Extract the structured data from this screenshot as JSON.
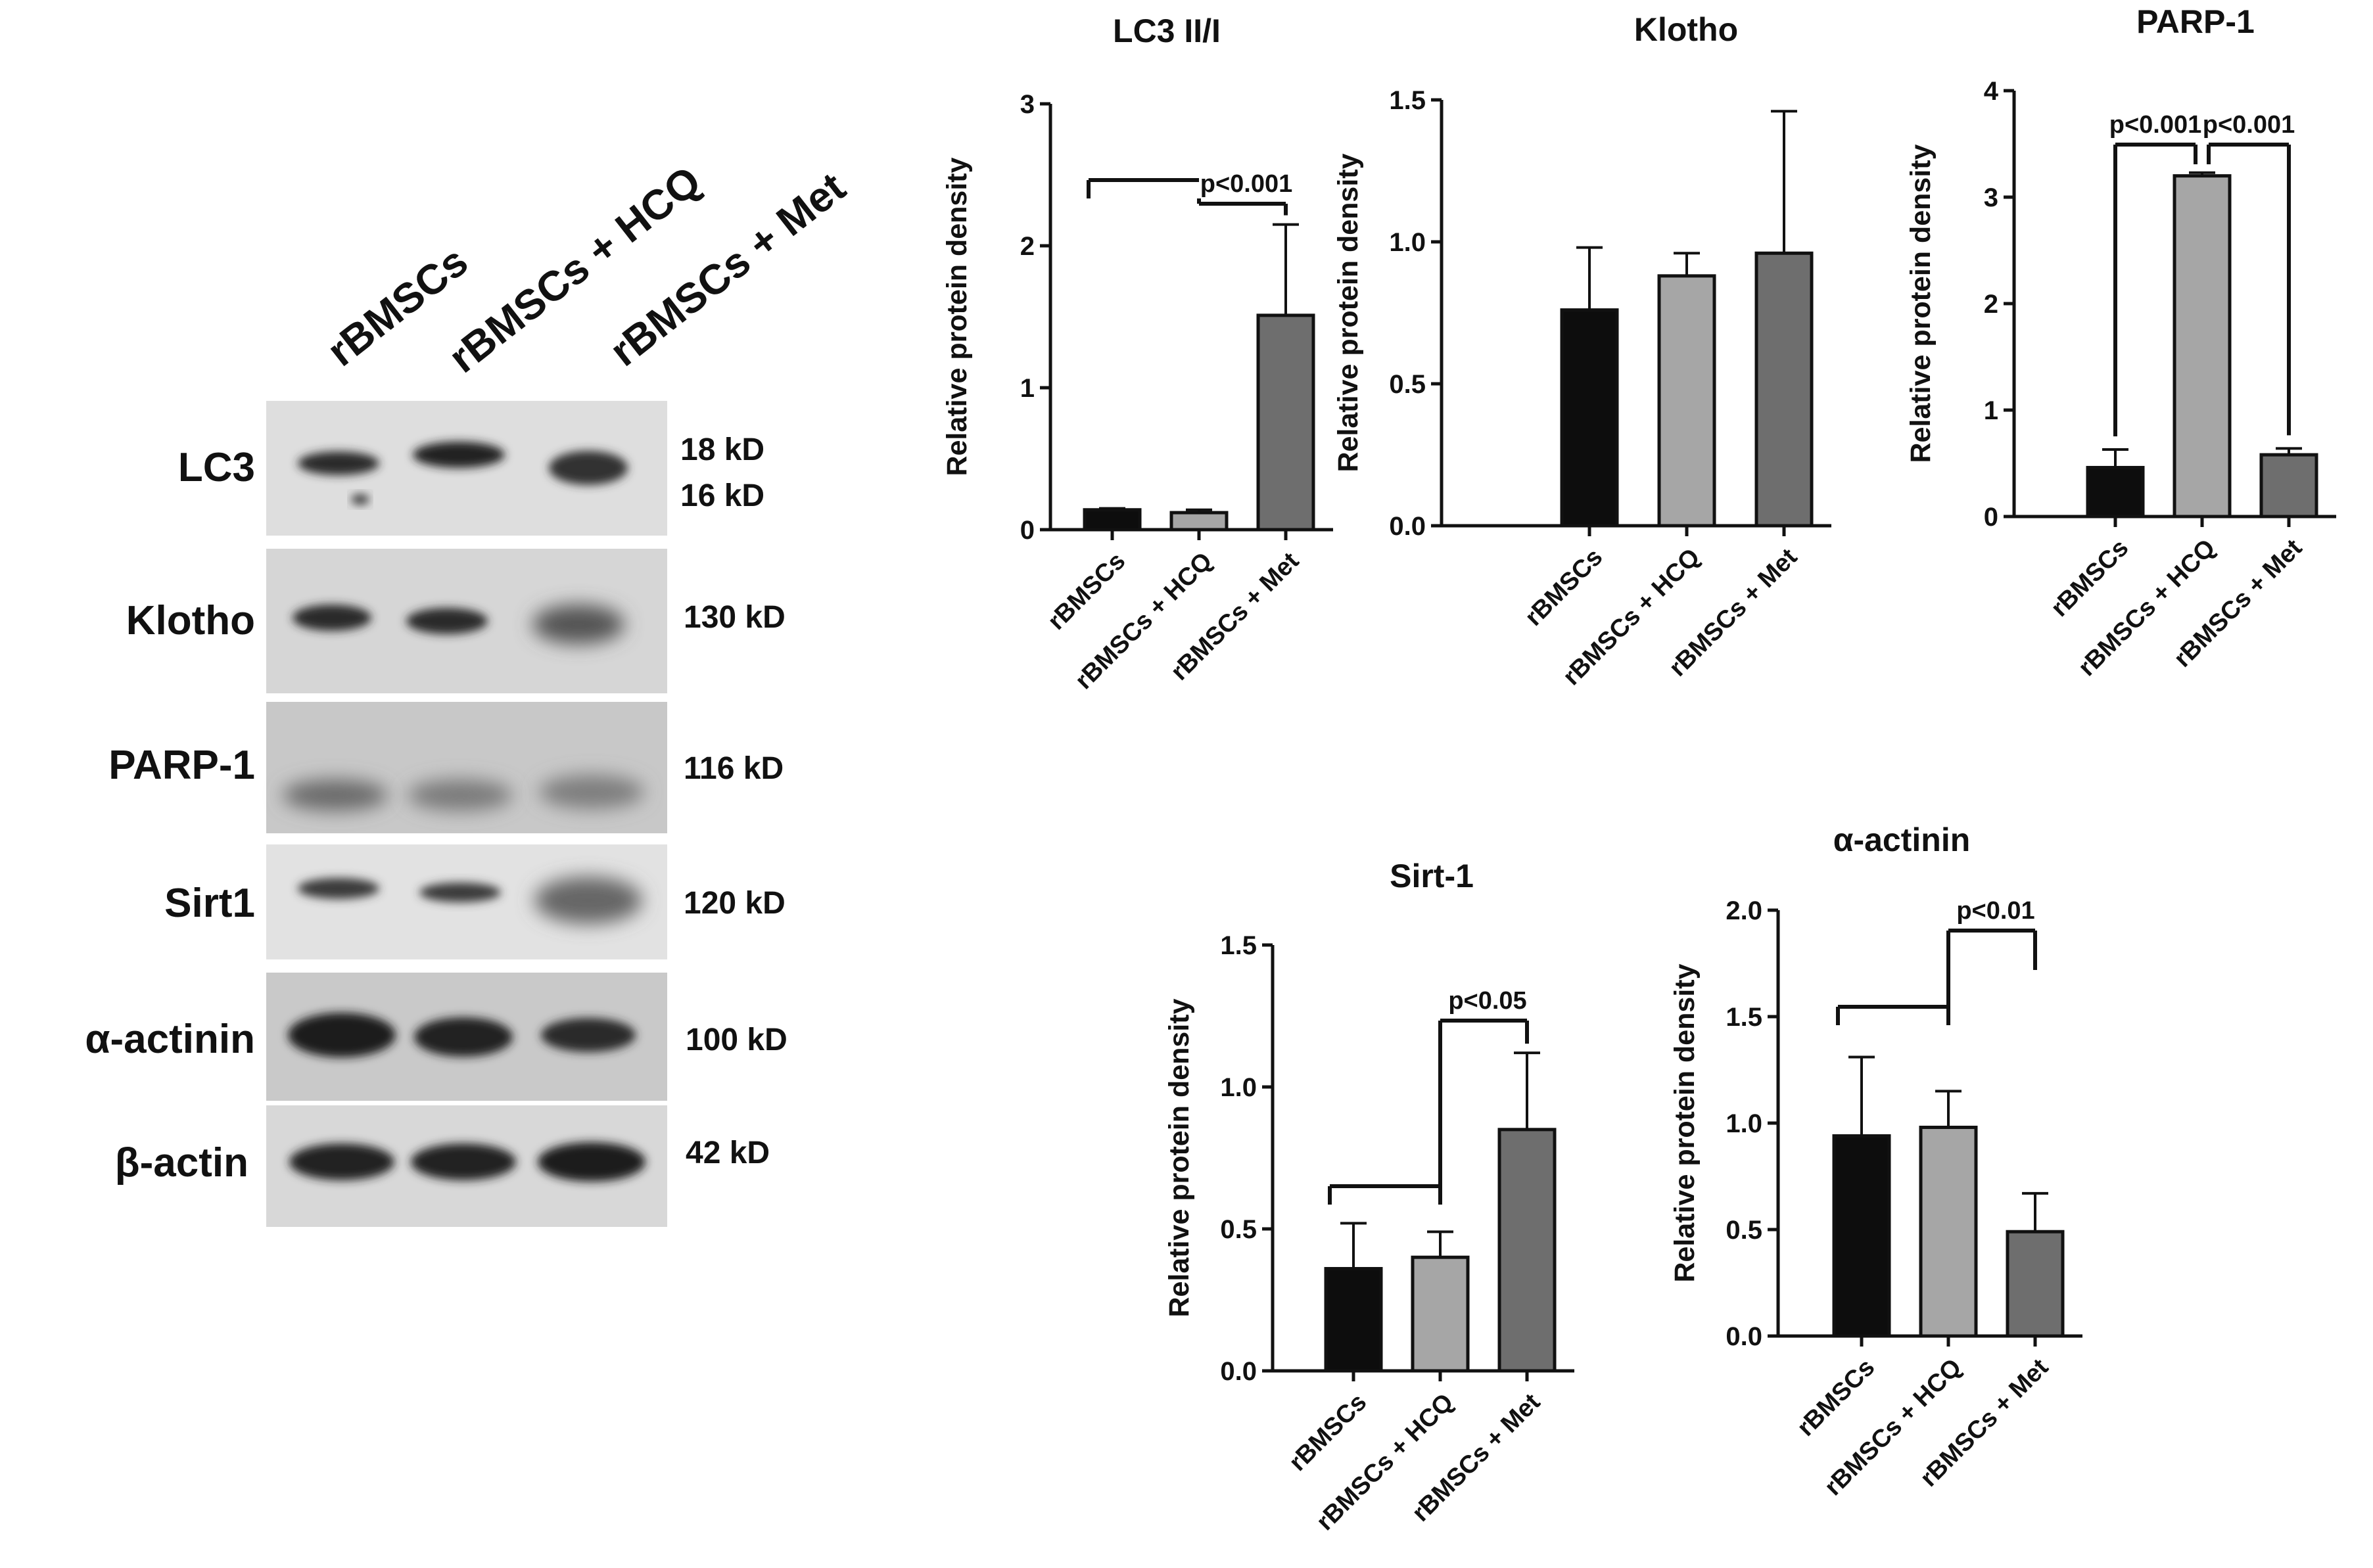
{
  "blot": {
    "lanes": [
      "rBMSCs",
      "rBMSCs + HCQ",
      "rBMSCs + Met"
    ],
    "rows": [
      {
        "label": "LC3",
        "sizes": [
          "18 kD",
          "16 kD"
        ]
      },
      {
        "label": "Klotho",
        "sizes": [
          "130 kD"
        ]
      },
      {
        "label": "PARP-1",
        "sizes": [
          "116 kD"
        ]
      },
      {
        "label": "Sirt1",
        "sizes": [
          "120 kD"
        ]
      },
      {
        "label": "α-actinin",
        "sizes": [
          "100 kD"
        ]
      },
      {
        "label": "β-actin",
        "sizes": [
          "42 kD"
        ]
      }
    ]
  },
  "colors": {
    "bar1": "#0d0d0d",
    "bar2": "#a6a6a6",
    "bar3": "#6e6e6e"
  },
  "chart_data": [
    {
      "type": "bar",
      "title": "LC3 II/I",
      "ylabel": "Relative protein density",
      "categories": [
        "rBMSCs",
        "rBMSCs + HCQ",
        "rBMSCs + Met"
      ],
      "values": [
        0.14,
        0.12,
        1.51
      ],
      "errors": [
        0.01,
        0.02,
        0.64
      ],
      "ylim": [
        0,
        3
      ],
      "yticks": [
        "0",
        "1",
        "2",
        "3"
      ],
      "significance": [
        {
          "groups": [
            [
              0,
              1
            ],
            2
          ],
          "label": "p<0.001"
        }
      ]
    },
    {
      "type": "bar",
      "title": "Klotho",
      "ylabel": "Relative protein density",
      "categories": [
        "rBMSCs",
        "rBMSCs + HCQ",
        "rBMSCs + Met"
      ],
      "values": [
        0.76,
        0.88,
        0.96
      ],
      "errors": [
        0.22,
        0.08,
        0.5
      ],
      "ylim": [
        0,
        1.5
      ],
      "yticks": [
        "0.0",
        "0.5",
        "1.0",
        "1.5"
      ],
      "significance": []
    },
    {
      "type": "bar",
      "title": "PARP-1",
      "ylabel": "Relative protein density",
      "categories": [
        "rBMSCs",
        "rBMSCs + HCQ",
        "rBMSCs + Met"
      ],
      "values": [
        0.46,
        3.2,
        0.58
      ],
      "errors": [
        0.17,
        0.03,
        0.06
      ],
      "ylim": [
        0,
        4
      ],
      "yticks": [
        "0",
        "1",
        "2",
        "3",
        "4"
      ],
      "significance": [
        {
          "groups": [
            0,
            1
          ],
          "label": "p<0.001"
        },
        {
          "groups": [
            1,
            2
          ],
          "label": "p<0.001"
        }
      ]
    },
    {
      "type": "bar",
      "title": "Sirt-1",
      "ylabel": "Relative protein density",
      "categories": [
        "rBMSCs",
        "rBMSCs + HCQ",
        "rBMSCs + Met"
      ],
      "values": [
        0.36,
        0.4,
        0.85
      ],
      "errors": [
        0.16,
        0.09,
        0.27
      ],
      "ylim": [
        0,
        1.5
      ],
      "yticks": [
        "0.0",
        "0.5",
        "1.0",
        "1.5"
      ],
      "significance": [
        {
          "groups": [
            [
              0,
              1
            ],
            2
          ],
          "label": "p<0.05"
        }
      ]
    },
    {
      "type": "bar",
      "title": "α-actinin",
      "ylabel": "Relative protein density",
      "categories": [
        "rBMSCs",
        "rBMSCs + HCQ",
        "rBMSCs + Met"
      ],
      "values": [
        0.94,
        0.98,
        0.49
      ],
      "errors": [
        0.37,
        0.17,
        0.18
      ],
      "ylim": [
        0,
        2.0
      ],
      "yticks": [
        "0.0",
        "0.5",
        "1.0",
        "1.5",
        "2.0"
      ],
      "significance": [
        {
          "groups": [
            [
              0,
              1
            ],
            2
          ],
          "label": "p<0.01"
        }
      ]
    }
  ]
}
